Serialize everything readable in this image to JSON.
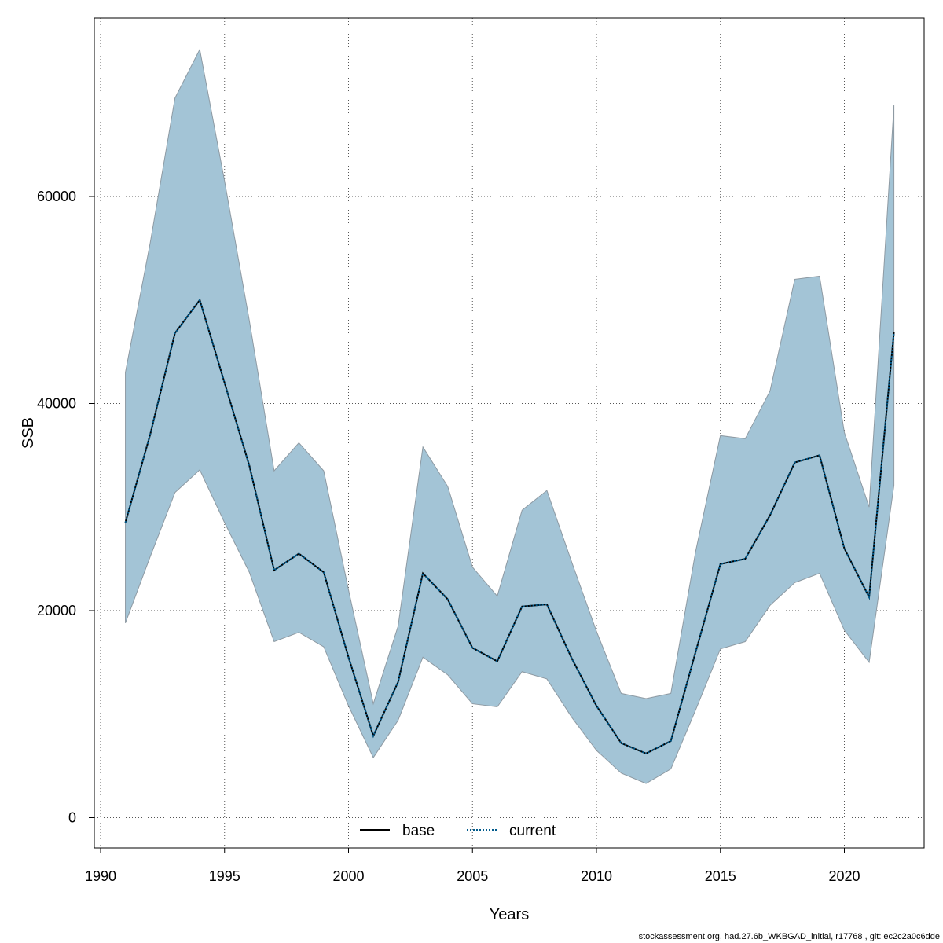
{
  "chart_data": {
    "type": "area",
    "xlabel": "Years",
    "ylabel": "SSB",
    "xlim": [
      1990,
      2023
    ],
    "ylim": [
      0,
      74000
    ],
    "x_ticks": [
      1990,
      1995,
      2000,
      2005,
      2010,
      2015,
      2020
    ],
    "y_ticks": [
      0,
      20000,
      40000,
      60000
    ],
    "grid": true,
    "legend_position": "bottom-center",
    "band_color": "#a3c4d6",
    "band_edge_color": "#8e9aa3",
    "x": [
      1991,
      1992,
      1993,
      1994,
      1995,
      1996,
      1997,
      1998,
      1999,
      2000,
      2001,
      2002,
      2003,
      2004,
      2005,
      2006,
      2007,
      2008,
      2009,
      2010,
      2011,
      2012,
      2013,
      2014,
      2015,
      2016,
      2017,
      2018,
      2019,
      2020,
      2021,
      2022
    ],
    "band": {
      "upper": [
        43000,
        55500,
        69500,
        74200,
        61500,
        48000,
        33500,
        36200,
        33500,
        22000,
        11000,
        18500,
        35800,
        32000,
        24200,
        21400,
        29700,
        31600,
        24700,
        18000,
        12000,
        11500,
        12000,
        25700,
        36900,
        36600,
        41200,
        52000,
        52300,
        37200,
        30000,
        68800
      ],
      "lower": [
        18800,
        25200,
        31400,
        33600,
        28500,
        23700,
        17000,
        17900,
        16500,
        10800,
        5800,
        9400,
        15500,
        13800,
        11000,
        10700,
        14100,
        13400,
        9700,
        6500,
        4300,
        3300,
        4700,
        10400,
        16300,
        17000,
        20500,
        22700,
        23600,
        18100,
        15000,
        32100
      ]
    },
    "series": [
      {
        "name": "base",
        "color": "#000000",
        "style": "solid",
        "values": [
          28500,
          37000,
          46800,
          50000,
          42000,
          34000,
          23900,
          25500,
          23700,
          15500,
          7900,
          13100,
          23600,
          21100,
          16400,
          15100,
          20400,
          20600,
          15400,
          10800,
          7200,
          6200,
          7400,
          16000,
          24500,
          25000,
          29200,
          34300,
          35000,
          26000,
          21300,
          46900
        ]
      },
      {
        "name": "current",
        "color": "#005a8c",
        "style": "dotted",
        "values": [
          28500,
          37000,
          46800,
          50000,
          42000,
          34000,
          23900,
          25500,
          23700,
          15500,
          7900,
          13100,
          23600,
          21100,
          16400,
          15100,
          20400,
          20600,
          15400,
          10800,
          7200,
          6200,
          7400,
          16000,
          24500,
          25000,
          29200,
          34300,
          35000,
          26000,
          21300,
          46900
        ]
      }
    ]
  },
  "footer": "stockassessment.org, had.27.6b_WKBGAD_initial, r17768 , git: ec2c2a0c6dde"
}
